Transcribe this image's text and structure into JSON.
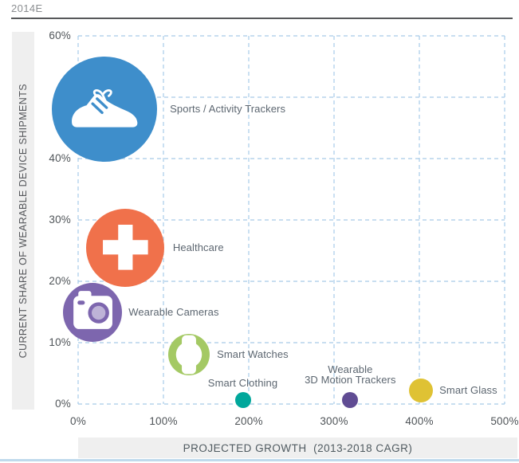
{
  "header": {
    "title": "2014E"
  },
  "colors": {
    "grid": "#A7CBE8",
    "title_text": "#8B8E91",
    "title_rule": "#57585A",
    "axis_bar_bg": "#EFEFEF",
    "tick_text": "#4F5458",
    "label_text": "#5C6670",
    "bottom_accent": "#BFDAEC"
  },
  "chart_data": {
    "type": "scatter",
    "subtype": "bubble",
    "title": "2014E",
    "xlabel": "PROJECTED GROWTH  (2013-2018 CAGR)",
    "ylabel": "CURRENT SHARE OF WEARABLE DEVICE SHIPMENTS",
    "xlim": [
      0,
      500
    ],
    "ylim": [
      0,
      60
    ],
    "grid": "dashed",
    "legend": "none",
    "x_ticks": [
      {
        "value": 0,
        "label": "0%"
      },
      {
        "value": 100,
        "label": "100%"
      },
      {
        "value": 200,
        "label": "200%"
      },
      {
        "value": 300,
        "label": "300%"
      },
      {
        "value": 400,
        "label": "400%"
      },
      {
        "value": 500,
        "label": "500%"
      }
    ],
    "y_ticks": [
      {
        "value": 0,
        "label": "0%"
      },
      {
        "value": 10,
        "label": "10%"
      },
      {
        "value": 20,
        "label": "20%"
      },
      {
        "value": 30,
        "label": "30%"
      },
      {
        "value": 40,
        "label": "40%"
      },
      {
        "value": 50,
        "label": "50%",
        "hidden": true
      },
      {
        "value": 60,
        "label": "60%"
      }
    ],
    "points": [
      {
        "name": "Sports / Activity Trackers",
        "label": "Sports / Activity Trackers",
        "x": 31,
        "y": 48,
        "radius_px": 66,
        "color": "#3E8ECB",
        "icon": "shoe-icon",
        "label_side": "right",
        "label_gap": 16
      },
      {
        "name": "Healthcare",
        "label": "Healthcare",
        "x": 55,
        "y": 25.5,
        "radius_px": 49,
        "color": "#F0714B",
        "icon": "plus-icon",
        "label_side": "right",
        "label_gap": 11
      },
      {
        "name": "Wearable Cameras",
        "label": "Wearable Cameras",
        "x": 17,
        "y": 15,
        "radius_px": 37,
        "color": "#7D66AE",
        "icon": "camera-icon",
        "label_side": "right",
        "label_gap": 8
      },
      {
        "name": "Smart Watches",
        "label": "Smart Watches",
        "x": 130,
        "y": 8,
        "radius_px": 26,
        "color": "#A4C964",
        "icon": "watch-icon",
        "label_side": "right",
        "label_gap": 9
      },
      {
        "name": "Smart Clothing",
        "label": "Smart Clothing",
        "x": 193,
        "y": 0.7,
        "radius_px": 10,
        "color": "#00A79B",
        "icon": null,
        "label_side": "top",
        "label_gap": 5
      },
      {
        "name": "Wearable 3D Motion Trackers",
        "label": "Wearable\n3D Motion Trackers",
        "x": 319,
        "y": 0.7,
        "radius_px": 10,
        "color": "#604C93",
        "icon": null,
        "label_side": "top",
        "label_gap": 9
      },
      {
        "name": "Smart Glass",
        "label": "Smart Glass",
        "x": 402,
        "y": 2.2,
        "radius_px": 15,
        "color": "#DFC234",
        "icon": null,
        "label_side": "right",
        "label_gap": 8
      }
    ]
  }
}
